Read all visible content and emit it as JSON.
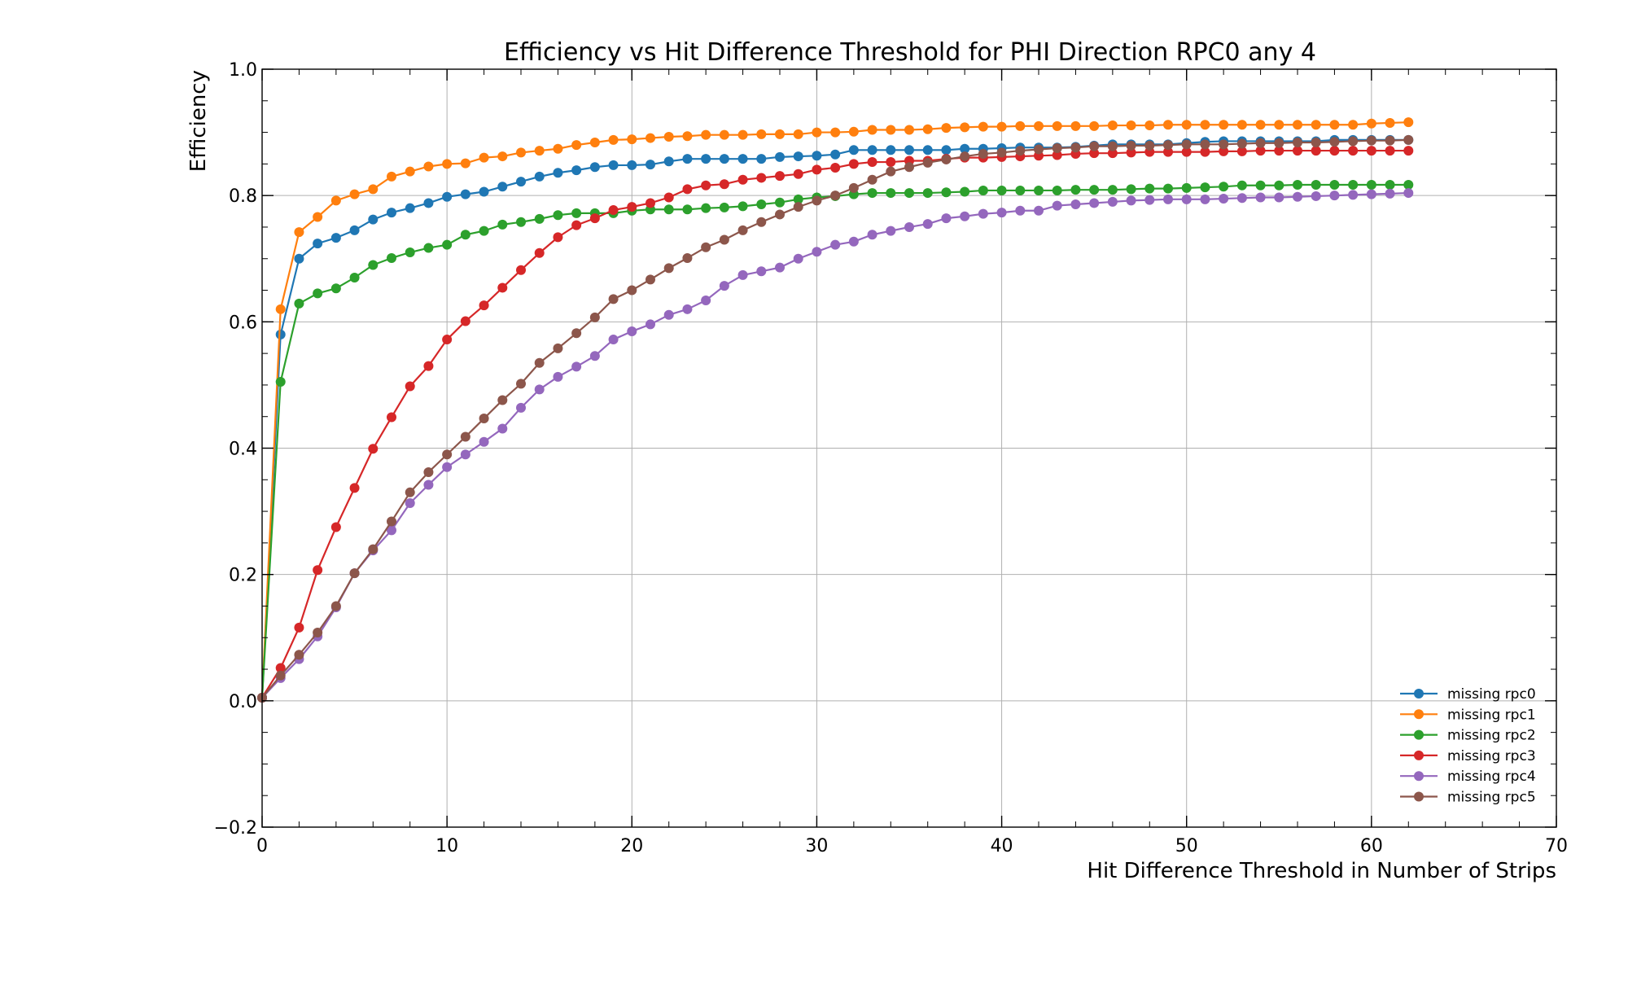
{
  "chart_data": {
    "type": "line",
    "title": "Efficiency vs Hit Difference Threshold for PHI Direction RPC0 any 4",
    "xlabel": "Hit Difference Threshold in Number of Strips",
    "ylabel": "Efficiency",
    "xlim": [
      0,
      70
    ],
    "ylim": [
      -0.2,
      1.0
    ],
    "xticks": [
      0,
      10,
      20,
      30,
      40,
      50,
      60,
      70
    ],
    "yticks": [
      -0.2,
      0.0,
      0.2,
      0.4,
      0.6,
      0.8,
      1.0
    ],
    "xtick_labels": [
      "0",
      "10",
      "20",
      "30",
      "40",
      "50",
      "60",
      "70"
    ],
    "ytick_labels": [
      "−0.2",
      "0.0",
      "0.2",
      "0.4",
      "0.6",
      "0.8",
      "1.0"
    ],
    "grid": true,
    "legend_position": "lower-right",
    "marker": "circle",
    "x": [
      0,
      1,
      2,
      3,
      4,
      5,
      6,
      7,
      8,
      9,
      10,
      11,
      12,
      13,
      14,
      15,
      16,
      17,
      18,
      19,
      20,
      21,
      22,
      23,
      24,
      25,
      26,
      27,
      28,
      29,
      30,
      31,
      32,
      33,
      34,
      35,
      36,
      37,
      38,
      39,
      40,
      41,
      42,
      43,
      44,
      45,
      46,
      47,
      48,
      49,
      50,
      51,
      52,
      53,
      54,
      55,
      56,
      57,
      58,
      59,
      60,
      61,
      62
    ],
    "series": [
      {
        "name": "missing rpc0",
        "color": "#1f77b4",
        "values": [
          0.005,
          0.58,
          0.7,
          0.724,
          0.733,
          0.745,
          0.762,
          0.773,
          0.78,
          0.788,
          0.798,
          0.802,
          0.806,
          0.814,
          0.822,
          0.83,
          0.836,
          0.84,
          0.845,
          0.848,
          0.848,
          0.849,
          0.854,
          0.858,
          0.858,
          0.858,
          0.858,
          0.858,
          0.861,
          0.862,
          0.863,
          0.865,
          0.872,
          0.872,
          0.872,
          0.872,
          0.872,
          0.872,
          0.874,
          0.874,
          0.875,
          0.876,
          0.876,
          0.876,
          0.877,
          0.879,
          0.881,
          0.881,
          0.881,
          0.881,
          0.883,
          0.885,
          0.886,
          0.886,
          0.886,
          0.886,
          0.886,
          0.886,
          0.888,
          0.888,
          0.888,
          0.888,
          0.888
        ]
      },
      {
        "name": "missing rpc1",
        "color": "#ff7f0e",
        "values": [
          0.005,
          0.62,
          0.742,
          0.766,
          0.792,
          0.802,
          0.81,
          0.83,
          0.838,
          0.846,
          0.85,
          0.851,
          0.86,
          0.862,
          0.868,
          0.871,
          0.874,
          0.88,
          0.884,
          0.888,
          0.889,
          0.891,
          0.893,
          0.894,
          0.896,
          0.896,
          0.896,
          0.897,
          0.897,
          0.897,
          0.9,
          0.9,
          0.901,
          0.904,
          0.904,
          0.904,
          0.905,
          0.907,
          0.908,
          0.909,
          0.909,
          0.91,
          0.91,
          0.91,
          0.91,
          0.91,
          0.911,
          0.911,
          0.911,
          0.912,
          0.912,
          0.912,
          0.912,
          0.912,
          0.912,
          0.912,
          0.912,
          0.912,
          0.912,
          0.912,
          0.914,
          0.915,
          0.916
        ]
      },
      {
        "name": "missing rpc2",
        "color": "#2ca02c",
        "values": [
          0.005,
          0.505,
          0.629,
          0.645,
          0.653,
          0.67,
          0.69,
          0.701,
          0.71,
          0.717,
          0.722,
          0.738,
          0.744,
          0.754,
          0.758,
          0.763,
          0.769,
          0.772,
          0.772,
          0.772,
          0.776,
          0.778,
          0.778,
          0.778,
          0.78,
          0.781,
          0.783,
          0.786,
          0.789,
          0.794,
          0.797,
          0.799,
          0.802,
          0.804,
          0.804,
          0.804,
          0.804,
          0.805,
          0.806,
          0.808,
          0.808,
          0.808,
          0.808,
          0.808,
          0.809,
          0.809,
          0.809,
          0.81,
          0.811,
          0.811,
          0.812,
          0.813,
          0.814,
          0.816,
          0.816,
          0.816,
          0.817,
          0.817,
          0.817,
          0.817,
          0.817,
          0.817,
          0.817
        ]
      },
      {
        "name": "missing rpc3",
        "color": "#d62728",
        "values": [
          0.005,
          0.052,
          0.116,
          0.207,
          0.275,
          0.337,
          0.399,
          0.449,
          0.498,
          0.53,
          0.572,
          0.601,
          0.626,
          0.654,
          0.682,
          0.709,
          0.734,
          0.753,
          0.764,
          0.777,
          0.782,
          0.788,
          0.797,
          0.81,
          0.816,
          0.818,
          0.825,
          0.828,
          0.831,
          0.834,
          0.841,
          0.844,
          0.85,
          0.853,
          0.853,
          0.855,
          0.855,
          0.858,
          0.86,
          0.86,
          0.861,
          0.862,
          0.863,
          0.864,
          0.866,
          0.867,
          0.867,
          0.868,
          0.869,
          0.869,
          0.869,
          0.869,
          0.87,
          0.87,
          0.871,
          0.871,
          0.871,
          0.871,
          0.871,
          0.871,
          0.871,
          0.871,
          0.871
        ]
      },
      {
        "name": "missing rpc4",
        "color": "#9467bd",
        "values": [
          0.005,
          0.036,
          0.066,
          0.102,
          0.148,
          0.202,
          0.238,
          0.27,
          0.313,
          0.342,
          0.37,
          0.39,
          0.41,
          0.431,
          0.464,
          0.493,
          0.513,
          0.529,
          0.546,
          0.572,
          0.585,
          0.596,
          0.611,
          0.62,
          0.634,
          0.657,
          0.674,
          0.68,
          0.686,
          0.7,
          0.711,
          0.722,
          0.727,
          0.738,
          0.744,
          0.75,
          0.755,
          0.764,
          0.767,
          0.771,
          0.773,
          0.776,
          0.776,
          0.784,
          0.786,
          0.788,
          0.79,
          0.792,
          0.793,
          0.794,
          0.794,
          0.794,
          0.795,
          0.796,
          0.797,
          0.797,
          0.798,
          0.799,
          0.8,
          0.801,
          0.802,
          0.803,
          0.804
        ]
      },
      {
        "name": "missing rpc5",
        "color": "#8c564b",
        "values": [
          0.005,
          0.04,
          0.073,
          0.108,
          0.15,
          0.202,
          0.24,
          0.284,
          0.33,
          0.362,
          0.39,
          0.418,
          0.447,
          0.476,
          0.502,
          0.535,
          0.558,
          0.582,
          0.607,
          0.636,
          0.65,
          0.667,
          0.685,
          0.701,
          0.718,
          0.73,
          0.745,
          0.758,
          0.77,
          0.782,
          0.792,
          0.8,
          0.812,
          0.825,
          0.838,
          0.845,
          0.852,
          0.857,
          0.862,
          0.866,
          0.868,
          0.871,
          0.873,
          0.875,
          0.876,
          0.878,
          0.878,
          0.879,
          0.879,
          0.88,
          0.881,
          0.881,
          0.881,
          0.882,
          0.883,
          0.883,
          0.884,
          0.884,
          0.885,
          0.886,
          0.887,
          0.887,
          0.888
        ]
      }
    ]
  }
}
